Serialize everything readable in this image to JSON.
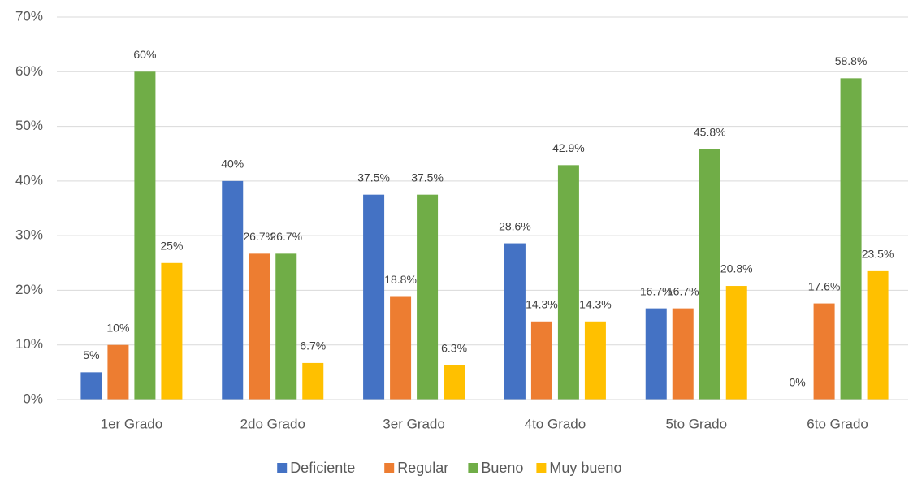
{
  "chart_data": {
    "type": "bar",
    "categories": [
      "1er Grado",
      "2do Grado",
      "3er Grado",
      "4to Grado",
      "5to Grado",
      "6to Grado"
    ],
    "series": [
      {
        "name": "Deficiente",
        "color": "#4472c4",
        "values": [
          5,
          40,
          37.5,
          28.6,
          16.7,
          0
        ],
        "value_labels": [
          "5%",
          "40%",
          "37.5%",
          "28.6%",
          "16.7%",
          "0%"
        ]
      },
      {
        "name": "Regular",
        "color": "#ed7d31",
        "values": [
          10,
          26.7,
          18.8,
          14.3,
          16.7,
          17.6
        ],
        "value_labels": [
          "10%",
          "26.7%",
          "18.8%",
          "14.3%",
          "16.7%",
          "17.6%"
        ]
      },
      {
        "name": "Bueno",
        "color": "#70ad47",
        "values": [
          60,
          26.7,
          37.5,
          42.9,
          45.8,
          58.8
        ],
        "value_labels": [
          "60%",
          "26.7%",
          "37.5%",
          "42.9%",
          "45.8%",
          "58.8%"
        ]
      },
      {
        "name": "Muy bueno",
        "color": "#ffc000",
        "values": [
          25,
          6.7,
          6.3,
          14.3,
          20.8,
          23.5
        ],
        "value_labels": [
          "25%",
          "6.7%",
          "6.3%",
          "14.3%",
          "20.8%",
          "23.5%"
        ]
      }
    ],
    "ylim": [
      0,
      70
    ],
    "yticks": [
      {
        "value": 0,
        "label": "0%"
      },
      {
        "value": 10,
        "label": "10%"
      },
      {
        "value": 20,
        "label": "20%"
      },
      {
        "value": 30,
        "label": "30%"
      },
      {
        "value": 40,
        "label": "40%"
      },
      {
        "value": 50,
        "label": "50%"
      },
      {
        "value": 60,
        "label": "60%"
      },
      {
        "value": 70,
        "label": "70%"
      }
    ],
    "grid": true,
    "legend": "bottom"
  }
}
